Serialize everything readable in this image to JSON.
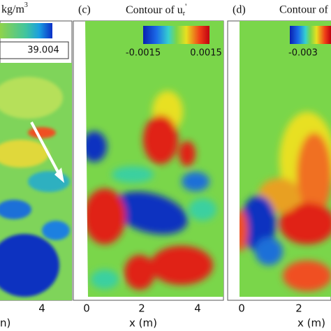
{
  "panel_b": {
    "unit": "kg/m",
    "unit_power": "3",
    "colorbar_max": "39.004",
    "xtick": "4",
    "xlabel": "n)"
  },
  "panel_c": {
    "label": "(c)",
    "title": "Contour of u",
    "title_sub": "r",
    "title_prime": "'",
    "colorbar_min": "-0.0015",
    "colorbar_max": "0.0015",
    "xticks": [
      "0",
      "2",
      "4"
    ],
    "xlabel": "x (m)"
  },
  "panel_d": {
    "label": "(d)",
    "title": "Contour of",
    "colorbar_min": "-0.003",
    "xticks": [
      "0",
      "2"
    ],
    "xlabel": "x (m)"
  }
}
